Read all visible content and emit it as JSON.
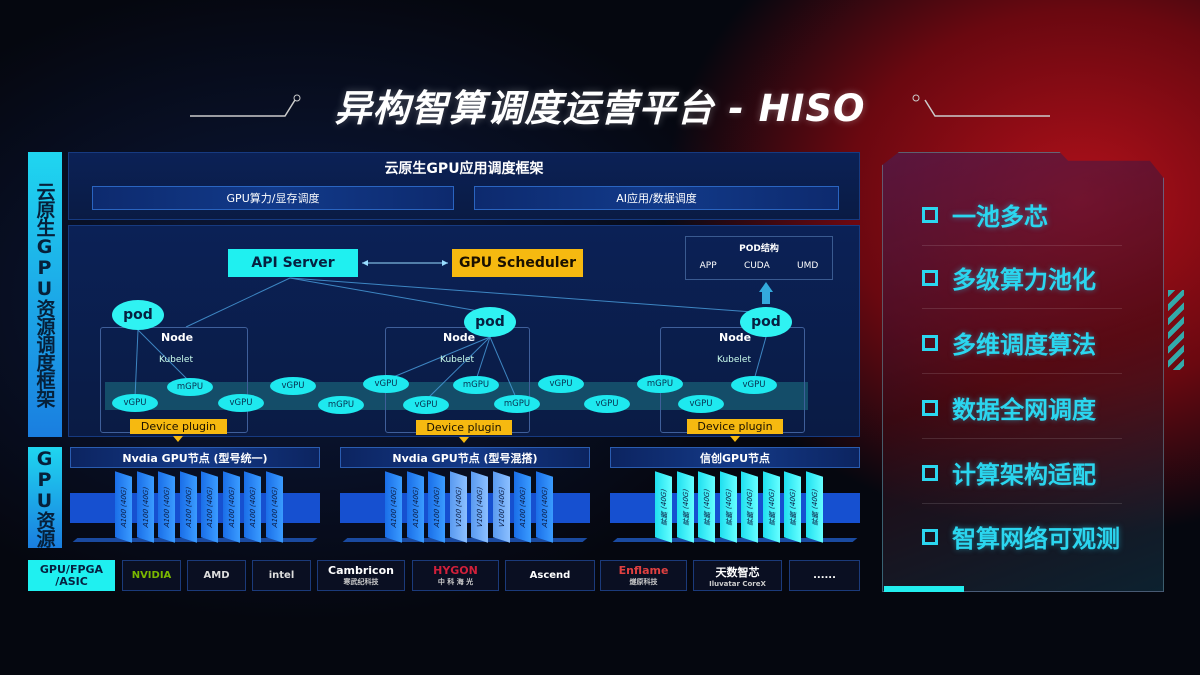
{
  "title": "异构智算调度运营平台 - HISO",
  "side_labels": {
    "scheduling": "云原生GPU资源调度框架",
    "resources": "GPU资源",
    "vendors": "GPU/FPGA /ASIC"
  },
  "framework": {
    "title": "云原生GPU应用调度框架",
    "left": "GPU算力/显存调度",
    "right": "AI应用/数据调度"
  },
  "diagram": {
    "api_server": "API Server",
    "gpu_scheduler": "GPU Scheduler",
    "pod_struct": {
      "title": "POD结构",
      "items": [
        "APP",
        "CUDA",
        "UMD"
      ]
    },
    "pod": "pod",
    "node": "Node",
    "kubelet": "Kubelet",
    "device_plugin": "Device plugin",
    "units": [
      "vGPU",
      "mGPU",
      "vGPU",
      "vGPU",
      "mGPU",
      "vGPU",
      "vGPU",
      "mGPU",
      "mGPU",
      "vGPU",
      "vGPU",
      "mGPU",
      "vGPU",
      "vGPU"
    ]
  },
  "gpu_nodes": [
    {
      "title": "Nvdia GPU节点 (型号统一)",
      "cards": [
        "A100 (40G)",
        "A100 (40G)",
        "A100 (40G)",
        "A100 (40G)",
        "A100 (40G)",
        "A100 (40G)",
        "A100 (40G)",
        "A100 (40G)"
      ]
    },
    {
      "title": "Nvdia GPU节点 (型号混搭)",
      "cards": [
        "A100 (40G)",
        "A100 (40G)",
        "A100 (40G)",
        "V100 (40G)",
        "V100 (40G)",
        "V100 (40G)",
        "A100 (40G)",
        "A100 (40G)"
      ]
    },
    {
      "title": "信创GPU节点",
      "cards": [
        "昇腾 (40G)",
        "昇腾 (40G)",
        "昇腾 (40G)",
        "昇腾 (40G)",
        "昇腾 (40G)",
        "昇腾 (40G)",
        "昇腾 (40G)",
        "昇腾 (40G)"
      ]
    }
  ],
  "vendors": [
    {
      "name": "NVIDIA",
      "sub": ""
    },
    {
      "name": "AMD",
      "sub": ""
    },
    {
      "name": "intel",
      "sub": ""
    },
    {
      "name": "Cambricon",
      "sub": "寒武纪科技"
    },
    {
      "name": "HYGON",
      "sub": "中 科 海 光"
    },
    {
      "name": "Ascend",
      "sub": ""
    },
    {
      "name": "Enflame",
      "sub": "燧原科技"
    },
    {
      "name": "天数智芯",
      "sub": "Iluvatar CoreX"
    },
    {
      "name": "......",
      "sub": ""
    }
  ],
  "features": [
    "一池多芯",
    "多级算力池化",
    "多维调度算法",
    "数据全网调度",
    "计算架构适配",
    "智算网络可观测"
  ],
  "colors": {
    "cyan": "#1ff0f0",
    "gold": "#f6b910",
    "blue": "#1650d0",
    "feature_text": "#2bd6ef"
  }
}
